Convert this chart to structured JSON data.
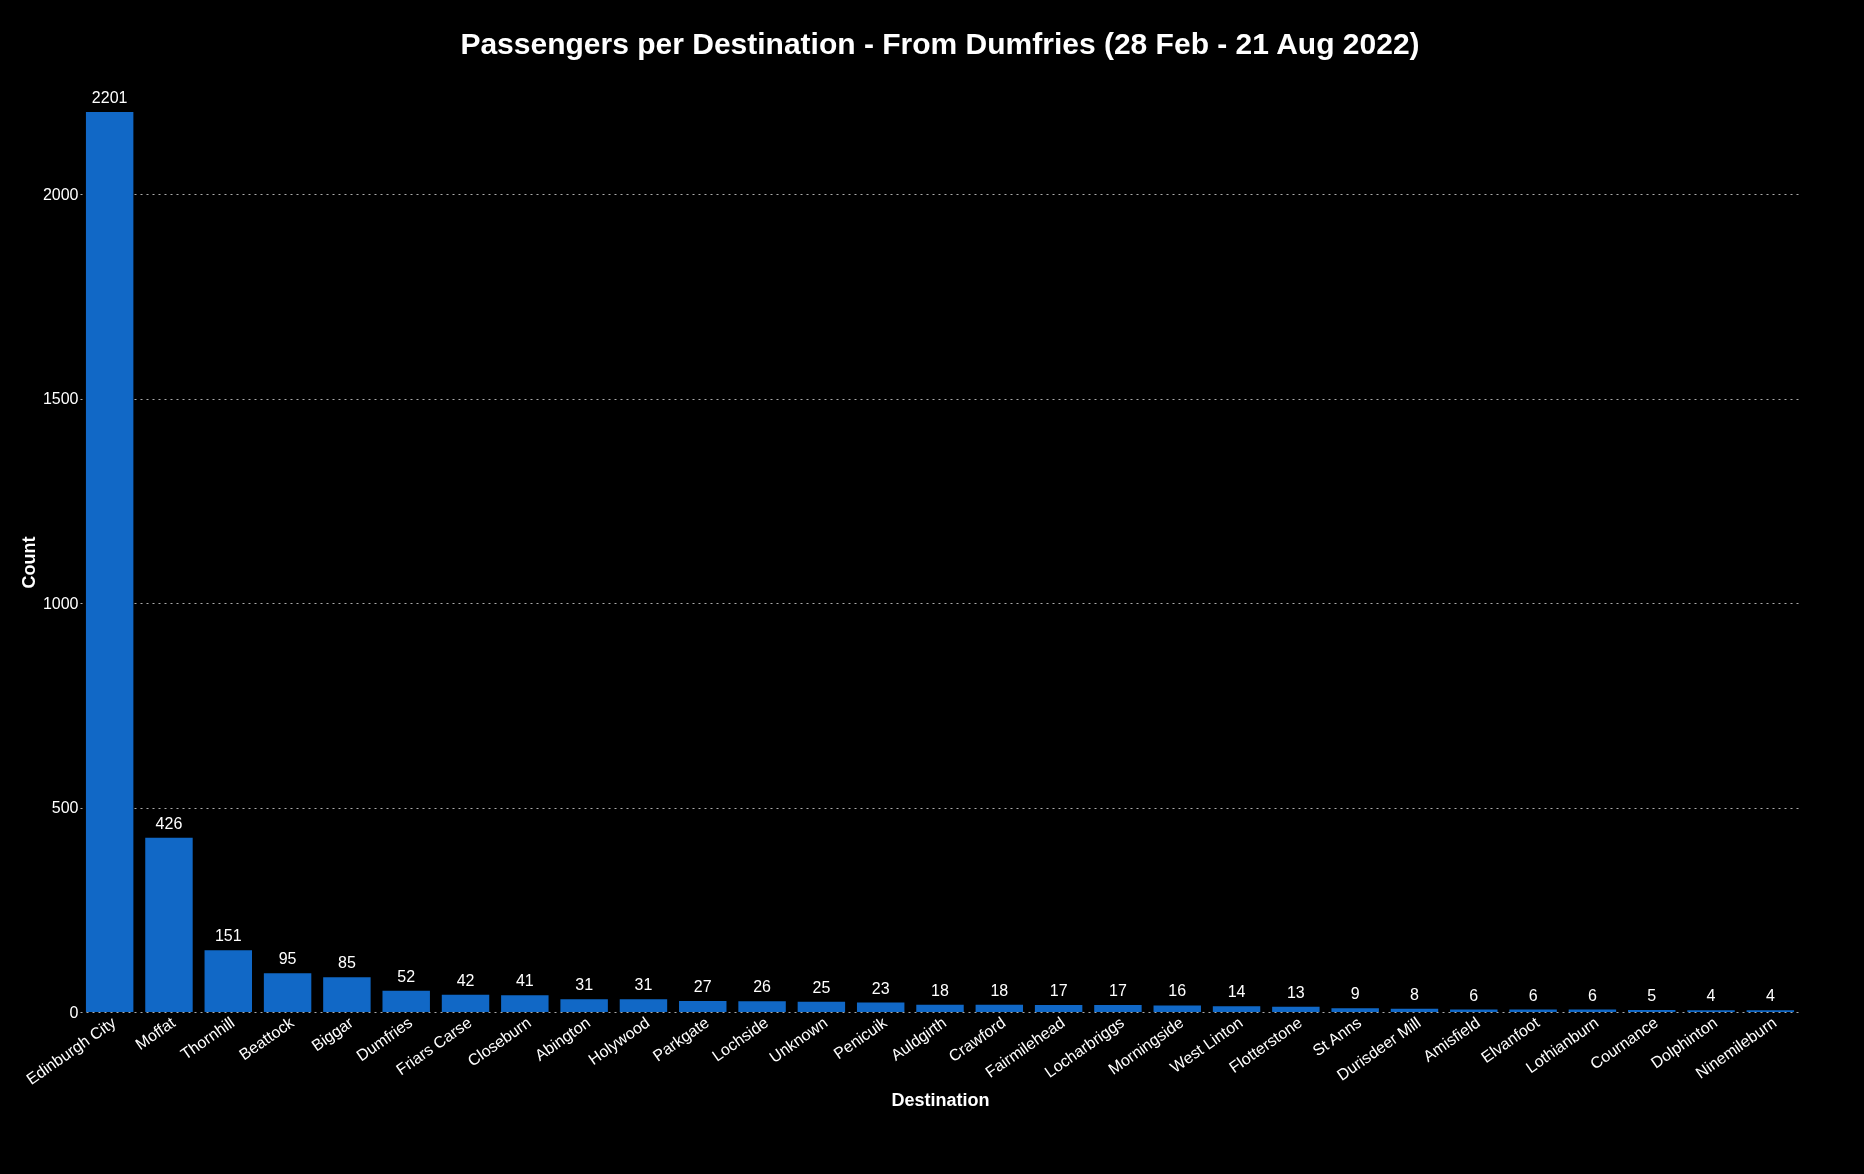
{
  "chart_data": {
    "type": "bar",
    "title": "Passengers per Destination - From Dumfries (28 Feb - 21 Aug 2022)",
    "xlabel": "Destination",
    "ylabel": "Count",
    "categories": [
      "Edinburgh City",
      "Moffat",
      "Thornhill",
      "Beattock",
      "Biggar",
      "Dumfries",
      "Friars Carse",
      "Closeburn",
      "Abington",
      "Holywood",
      "Parkgate",
      "Lochside",
      "Unknown",
      "Penicuik",
      "Auldgirth",
      "Crawford",
      "Fairmilehead",
      "Locharbriggs",
      "Morningside",
      "West Linton",
      "Flotterstone",
      "St Anns",
      "Durisdeer Mill",
      "Amisfield",
      "Elvanfoot",
      "Lothianburn",
      "Cournance",
      "Dolphinton",
      "Ninemileburn"
    ],
    "values": [
      2201,
      426,
      151,
      95,
      85,
      52,
      42,
      41,
      31,
      31,
      27,
      26,
      25,
      23,
      18,
      18,
      17,
      17,
      16,
      14,
      13,
      9,
      8,
      6,
      6,
      6,
      5,
      4,
      4
    ],
    "color": "#1168c6",
    "ylim": [
      0,
      2201
    ],
    "yticks": [
      0,
      500,
      1000,
      1500,
      2000
    ],
    "grid": "y",
    "data_labels": true
  }
}
